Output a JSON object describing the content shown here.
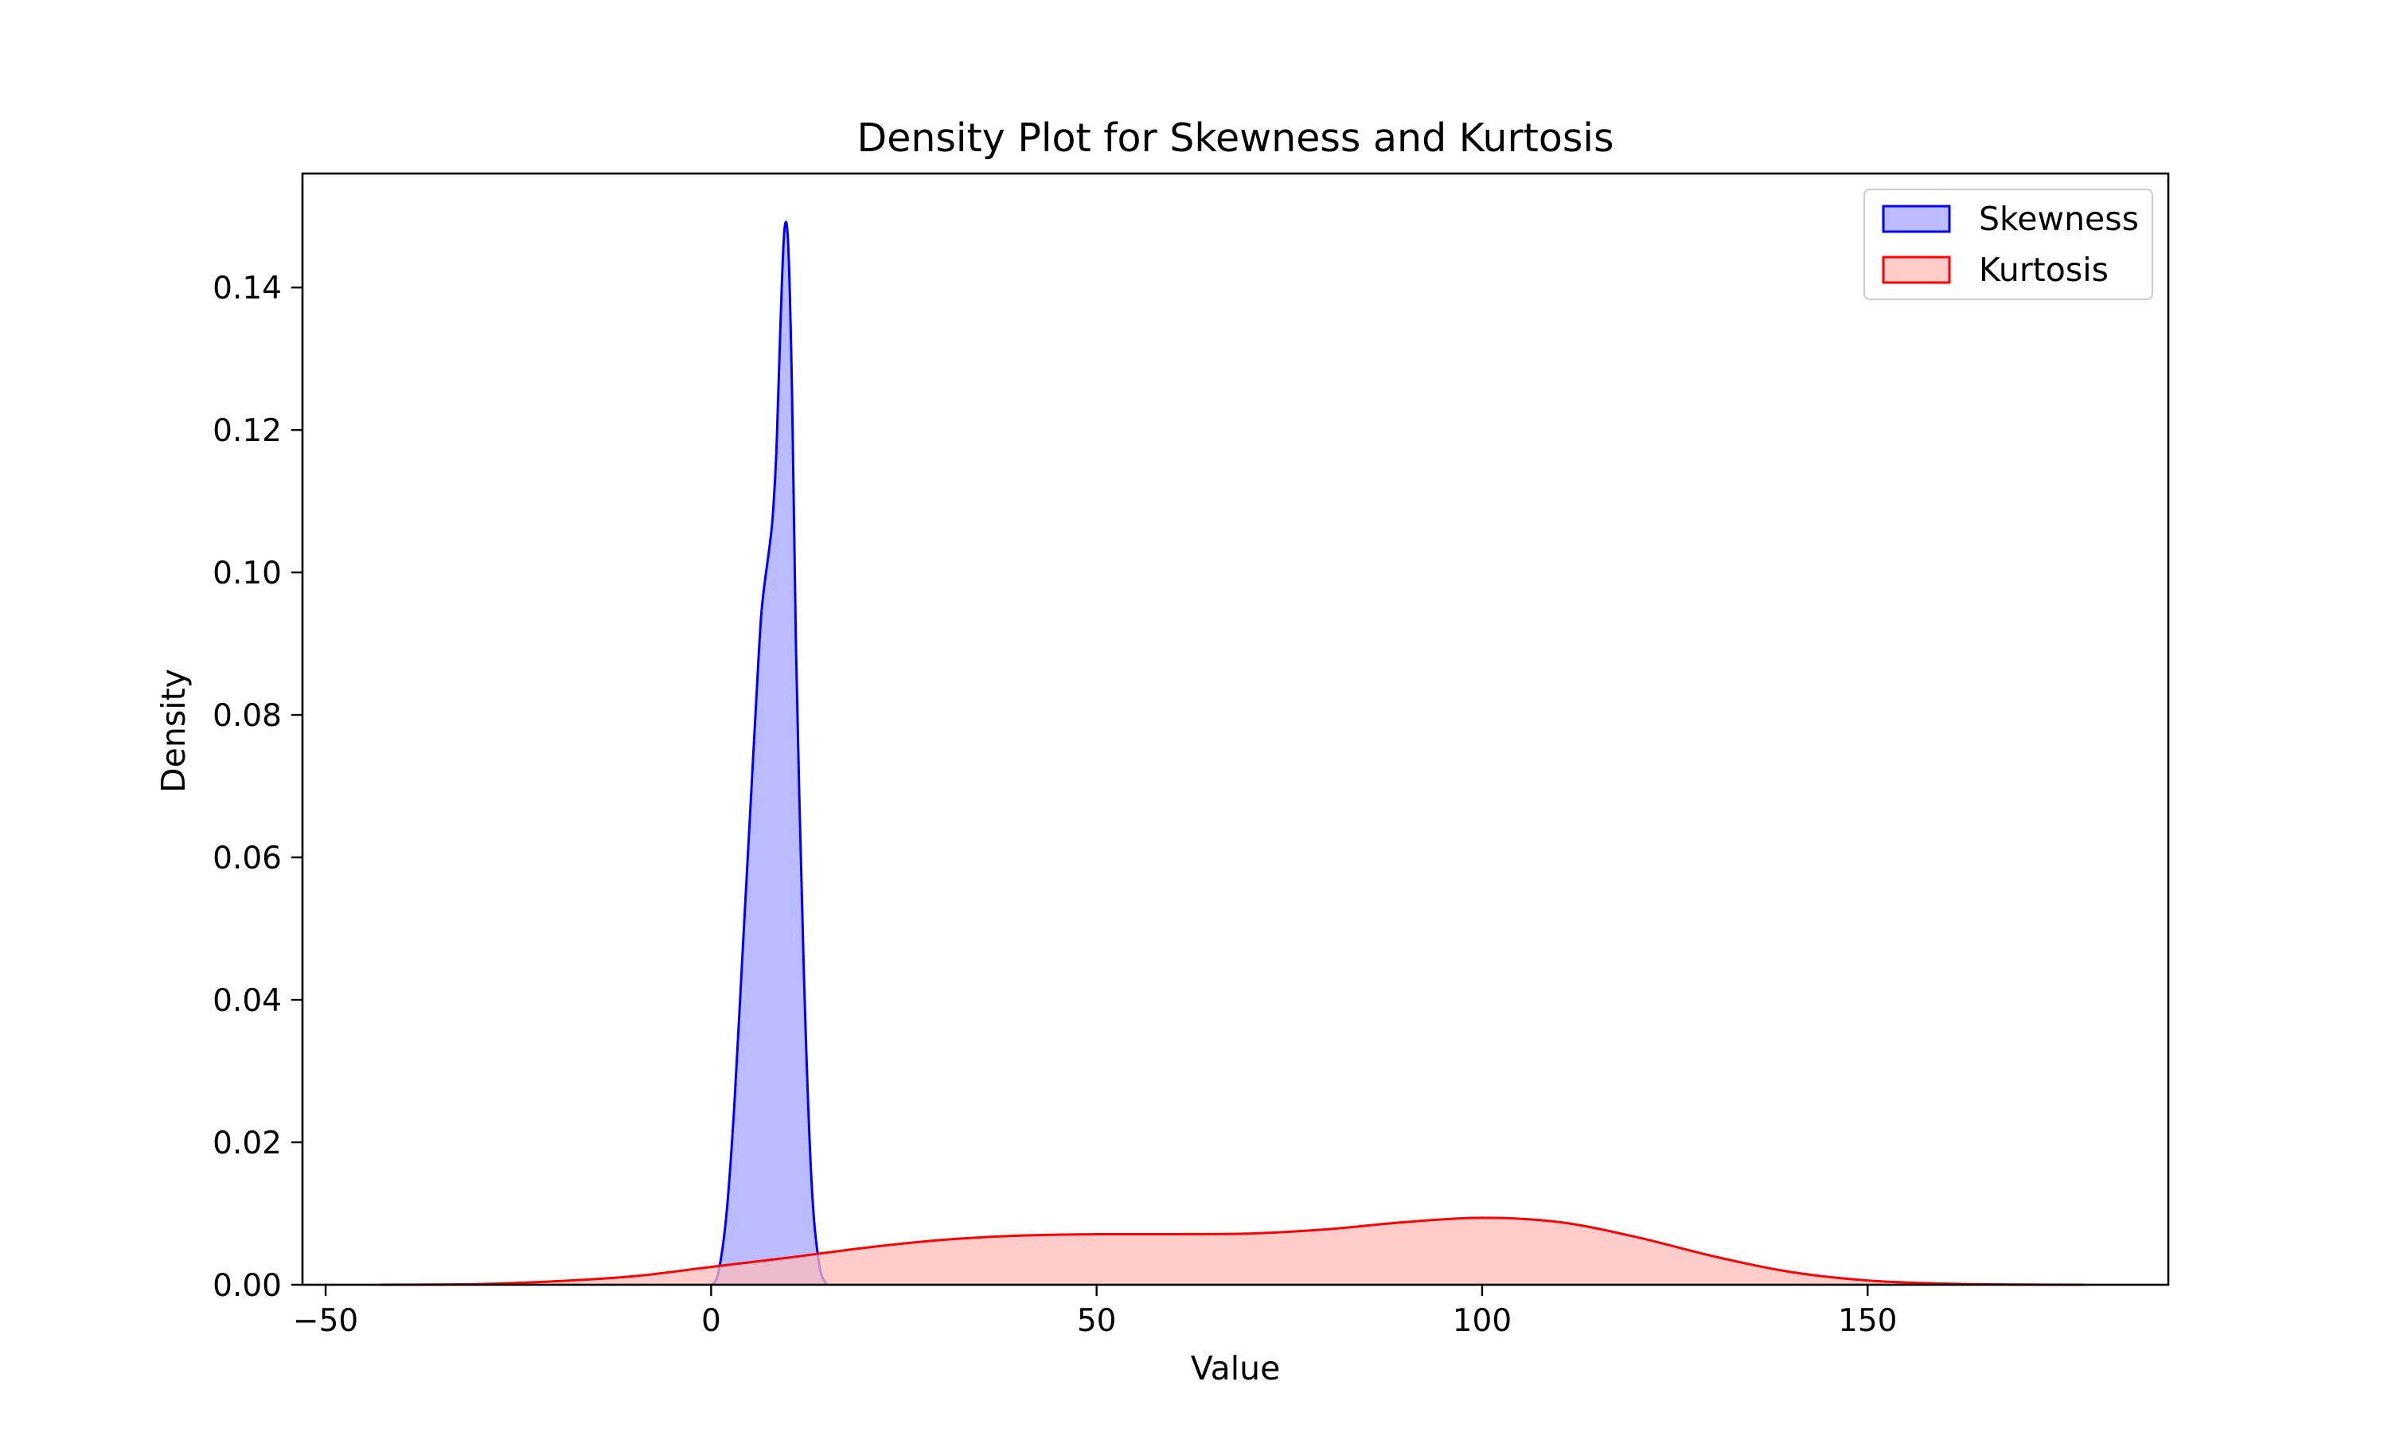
{
  "chart_data": {
    "type": "area",
    "title": "Density Plot for Skewness and Kurtosis",
    "xlabel": "Value",
    "ylabel": "Density",
    "xlim": [
      -53,
      189
    ],
    "ylim": [
      0,
      0.156
    ],
    "x_ticks": [
      {
        "value": -50,
        "label": "−50"
      },
      {
        "value": 0,
        "label": "0"
      },
      {
        "value": 50,
        "label": "50"
      },
      {
        "value": 100,
        "label": "100"
      },
      {
        "value": 150,
        "label": "150"
      }
    ],
    "y_ticks": [
      {
        "value": 0,
        "label": "0.00"
      },
      {
        "value": 0.02,
        "label": "0.02"
      },
      {
        "value": 0.04,
        "label": "0.04"
      },
      {
        "value": 0.06,
        "label": "0.06"
      },
      {
        "value": 0.08,
        "label": "0.08"
      },
      {
        "value": 0.1,
        "label": "0.10"
      },
      {
        "value": 0.12,
        "label": "0.12"
      },
      {
        "value": 0.14,
        "label": "0.14"
      }
    ],
    "grid": false,
    "legend_position": "top-right",
    "series": [
      {
        "name": "Skewness",
        "color": "#0000ff",
        "fill": "#bbbbff",
        "x": [
          0.2,
          1,
          2,
          3,
          4,
          5,
          6,
          6.5,
          7,
          7.5,
          8,
          8.5,
          9,
          9.5,
          10,
          10.5,
          11,
          12,
          13,
          14,
          15
        ],
        "y": [
          0,
          0.002,
          0.01,
          0.025,
          0.045,
          0.065,
          0.085,
          0.094,
          0.099,
          0.103,
          0.108,
          0.118,
          0.135,
          0.148,
          0.146,
          0.125,
          0.09,
          0.045,
          0.015,
          0.003,
          0
        ]
      },
      {
        "name": "Kurtosis",
        "color": "#ff0000",
        "fill": "#ffbbbb",
        "x": [
          -43,
          -30,
          -20,
          -10,
          0,
          10,
          20,
          30,
          40,
          50,
          60,
          70,
          80,
          90,
          100,
          110,
          120,
          130,
          140,
          150,
          160,
          170,
          178
        ],
        "y": [
          0,
          0.0001,
          0.0005,
          0.0012,
          0.0025,
          0.0038,
          0.0052,
          0.0063,
          0.0069,
          0.0071,
          0.0071,
          0.0072,
          0.0078,
          0.0088,
          0.0094,
          0.0088,
          0.0067,
          0.004,
          0.0018,
          0.0006,
          0.00015,
          3e-05,
          0
        ]
      }
    ]
  }
}
